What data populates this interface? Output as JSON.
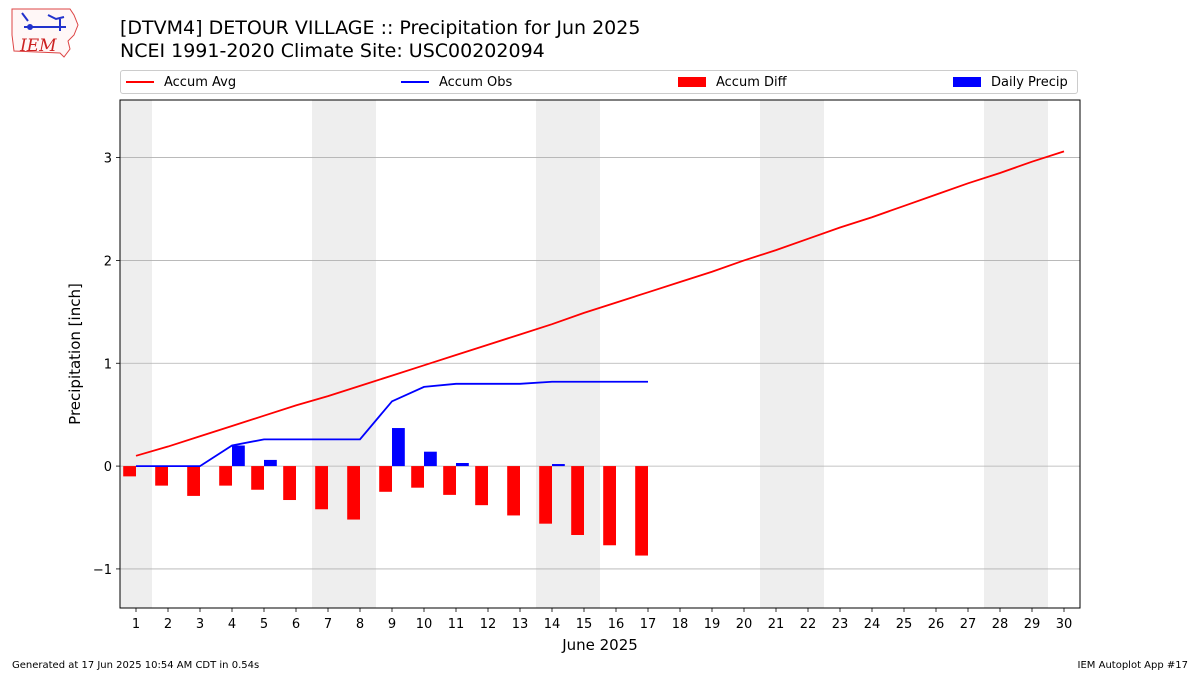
{
  "header": {
    "title_line1": "[DTVM4] DETOUR VILLAGE :: Precipitation for Jun 2025",
    "title_line2": "NCEI 1991-2020 Climate Site: USC00202094",
    "logo_text": "IEM"
  },
  "footer": {
    "generated": "Generated at 17 Jun 2025 10:54 AM CDT in 0.54s",
    "app": "IEM Autoplot App #17"
  },
  "legend": {
    "accum_avg": "Accum Avg",
    "accum_obs": "Accum Obs",
    "accum_diff": "Accum Diff",
    "daily_precip": "Daily Precip",
    "placement": "top, above plot, horizontal"
  },
  "colors": {
    "accum_avg": "#ff0000",
    "accum_obs": "#0000ff",
    "accum_diff": "#ff0000",
    "daily_precip": "#0000ff",
    "weekend_shade": "#eeeeee",
    "grid": "#b0b0b0"
  },
  "chart_data": {
    "type": "bar",
    "xlabel": "June 2025",
    "ylabel": "Precipitation [inch]",
    "xlim": [
      0.5,
      30.5
    ],
    "ylim": [
      -1.38,
      3.56
    ],
    "x_ticks": [
      1,
      2,
      3,
      4,
      5,
      6,
      7,
      8,
      9,
      10,
      11,
      12,
      13,
      14,
      15,
      16,
      17,
      18,
      19,
      20,
      21,
      22,
      23,
      24,
      25,
      26,
      27,
      28,
      29,
      30
    ],
    "y_ticks": [
      -1,
      0,
      1,
      2,
      3
    ],
    "y_tick_labels": [
      "−1",
      "0",
      "1",
      "2",
      "3"
    ],
    "grid": "horizontal",
    "weekend_spans": [
      [
        0.5,
        1.5
      ],
      [
        6.5,
        8.5
      ],
      [
        13.5,
        15.5
      ],
      [
        20.5,
        22.5
      ],
      [
        27.5,
        29.5
      ]
    ],
    "days": [
      1,
      2,
      3,
      4,
      5,
      6,
      7,
      8,
      9,
      10,
      11,
      12,
      13,
      14,
      15,
      16,
      17,
      18,
      19,
      20,
      21,
      22,
      23,
      24,
      25,
      26,
      27,
      28,
      29,
      30
    ],
    "series": [
      {
        "name": "Accum Avg",
        "kind": "line",
        "x": [
          1,
          2,
          3,
          4,
          5,
          6,
          7,
          8,
          9,
          10,
          11,
          12,
          13,
          14,
          15,
          16,
          17,
          18,
          19,
          20,
          21,
          22,
          23,
          24,
          25,
          26,
          27,
          28,
          29,
          30
        ],
        "values": [
          0.1,
          0.19,
          0.29,
          0.39,
          0.49,
          0.59,
          0.68,
          0.78,
          0.88,
          0.98,
          1.08,
          1.18,
          1.28,
          1.38,
          1.49,
          1.59,
          1.69,
          1.79,
          1.89,
          2.0,
          2.1,
          2.21,
          2.32,
          2.42,
          2.53,
          2.64,
          2.75,
          2.85,
          2.96,
          3.06
        ]
      },
      {
        "name": "Accum Obs",
        "kind": "line",
        "x": [
          1,
          2,
          3,
          4,
          5,
          6,
          7,
          8,
          9,
          10,
          11,
          12,
          13,
          14,
          15,
          16,
          17
        ],
        "values": [
          0.0,
          0.0,
          0.0,
          0.2,
          0.26,
          0.26,
          0.26,
          0.26,
          0.63,
          0.77,
          0.8,
          0.8,
          0.8,
          0.82,
          0.82,
          0.82,
          0.82
        ]
      },
      {
        "name": "Accum Diff",
        "kind": "bar",
        "x": [
          1,
          2,
          3,
          4,
          5,
          6,
          7,
          8,
          9,
          10,
          11,
          12,
          13,
          14,
          15,
          16,
          17
        ],
        "values": [
          -0.1,
          -0.19,
          -0.29,
          -0.19,
          -0.23,
          -0.33,
          -0.42,
          -0.52,
          -0.25,
          -0.21,
          -0.28,
          -0.38,
          -0.48,
          -0.56,
          -0.67,
          -0.77,
          -0.87
        ]
      },
      {
        "name": "Daily Precip",
        "kind": "bar",
        "x": [
          1,
          2,
          3,
          4,
          5,
          6,
          7,
          8,
          9,
          10,
          11,
          12,
          13,
          14,
          15,
          16,
          17
        ],
        "values": [
          0.0,
          0.0,
          0.0,
          0.2,
          0.06,
          0.0,
          0.0,
          0.0,
          0.37,
          0.14,
          0.03,
          0.0,
          0.0,
          0.02,
          0.0,
          0.0,
          0.0
        ]
      }
    ]
  }
}
